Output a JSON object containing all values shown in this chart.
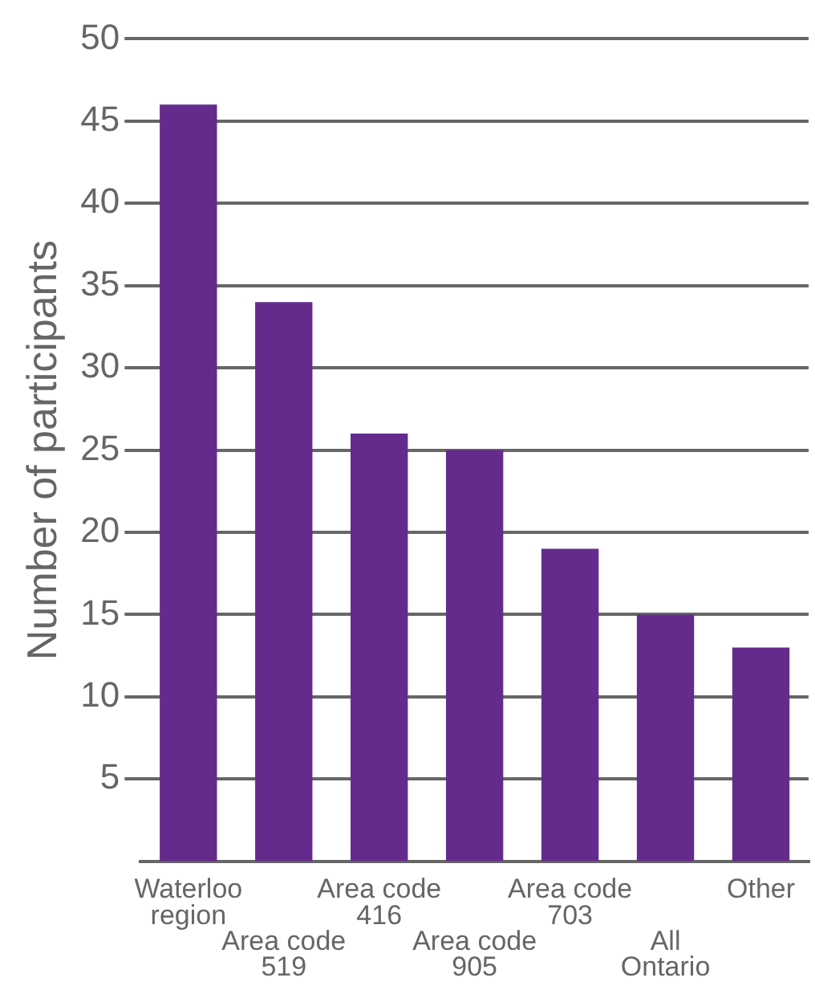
{
  "chart_data": {
    "type": "bar",
    "ylabel": "Number of participants",
    "categories": [
      "Waterloo region",
      "Area code 519",
      "Area code 416",
      "Area code 905",
      "Area code 703",
      "All Ontario",
      "Other"
    ],
    "values": [
      46,
      34,
      26,
      25,
      19,
      15,
      13
    ],
    "color": "#642b8c",
    "ylim": [
      0,
      50
    ],
    "yticks": [
      5,
      10,
      15,
      20,
      25,
      30,
      35,
      40,
      45,
      50
    ],
    "grid": "y",
    "legend": false
  }
}
